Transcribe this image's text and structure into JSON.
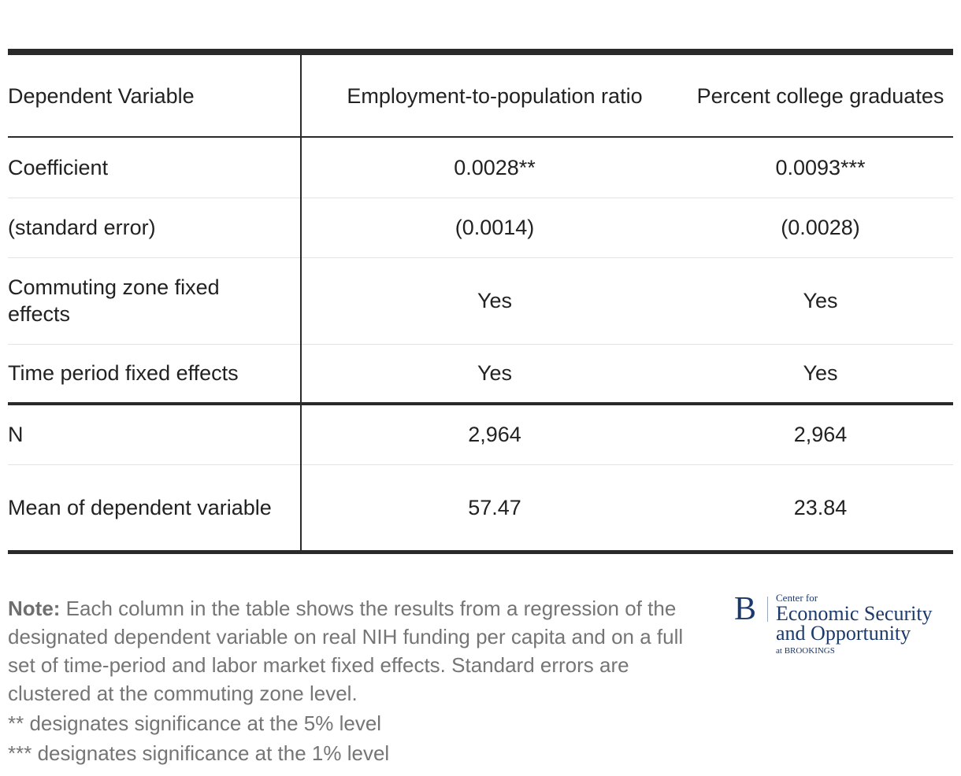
{
  "table": {
    "header": {
      "label": "Dependent Variable",
      "col1": "Employment-to-population ratio",
      "col2": "Percent college graduates"
    },
    "rows": [
      {
        "label": "Coefficient",
        "col1": "0.0028**",
        "col2": "0.0093***"
      },
      {
        "label": "(standard error)",
        "col1": "(0.0014)",
        "col2": "(0.0028)"
      },
      {
        "label": "Commuting zone fixed effects",
        "col1": "Yes",
        "col2": "Yes"
      },
      {
        "label": "Time period fixed effects",
        "col1": "Yes",
        "col2": "Yes"
      },
      {
        "label": "N",
        "col1": "2,964",
        "col2": "2,964"
      },
      {
        "label": "Mean of dependent variable",
        "col1": "57.47",
        "col2": "23.84"
      }
    ]
  },
  "notes": {
    "label": "Note:",
    "text": "Each column in the table shows the results from a regression of the designated dependent variable on real NIH funding per capita and on a full set of time-period and labor market fixed effects. Standard errors are clustered at the commuting zone level.",
    "sig5": "** designates significance at the 5% level",
    "sig1": "*** designates significance at the 1% level"
  },
  "logo": {
    "mark": "B",
    "line_small": "Center for",
    "line_big_1": "Economic Security",
    "line_big_2": "and Opportunity",
    "line_tiny": "at BROOKINGS",
    "color": "#1b3a6b"
  }
}
